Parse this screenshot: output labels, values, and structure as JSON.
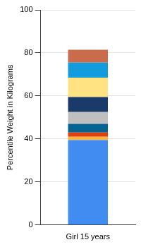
{
  "chart_data": {
    "type": "bar",
    "categories": [
      "Girl 15 years"
    ],
    "series": [
      {
        "color": "#418CF0",
        "values": [
          39.5
        ]
      },
      {
        "color": "#FCB441",
        "values": [
          1.5
        ]
      },
      {
        "color": "#E0400A",
        "values": [
          2
        ]
      },
      {
        "color": "#056492",
        "values": [
          4
        ]
      },
      {
        "color": "#BFBFBF",
        "values": [
          5.5
        ]
      },
      {
        "color": "#1A3B69",
        "values": [
          7
        ]
      },
      {
        "color": "#FFE382",
        "values": [
          9
        ]
      },
      {
        "color": "#129CDD",
        "values": [
          7
        ]
      },
      {
        "color": "#CA6B4B",
        "values": [
          6
        ]
      }
    ],
    "ylabel": "Percentile Weight in Kilograms",
    "ylim": [
      0,
      100
    ],
    "yticks": [
      0,
      20,
      40,
      60,
      80,
      100
    ],
    "grid": true,
    "stacked": true
  }
}
